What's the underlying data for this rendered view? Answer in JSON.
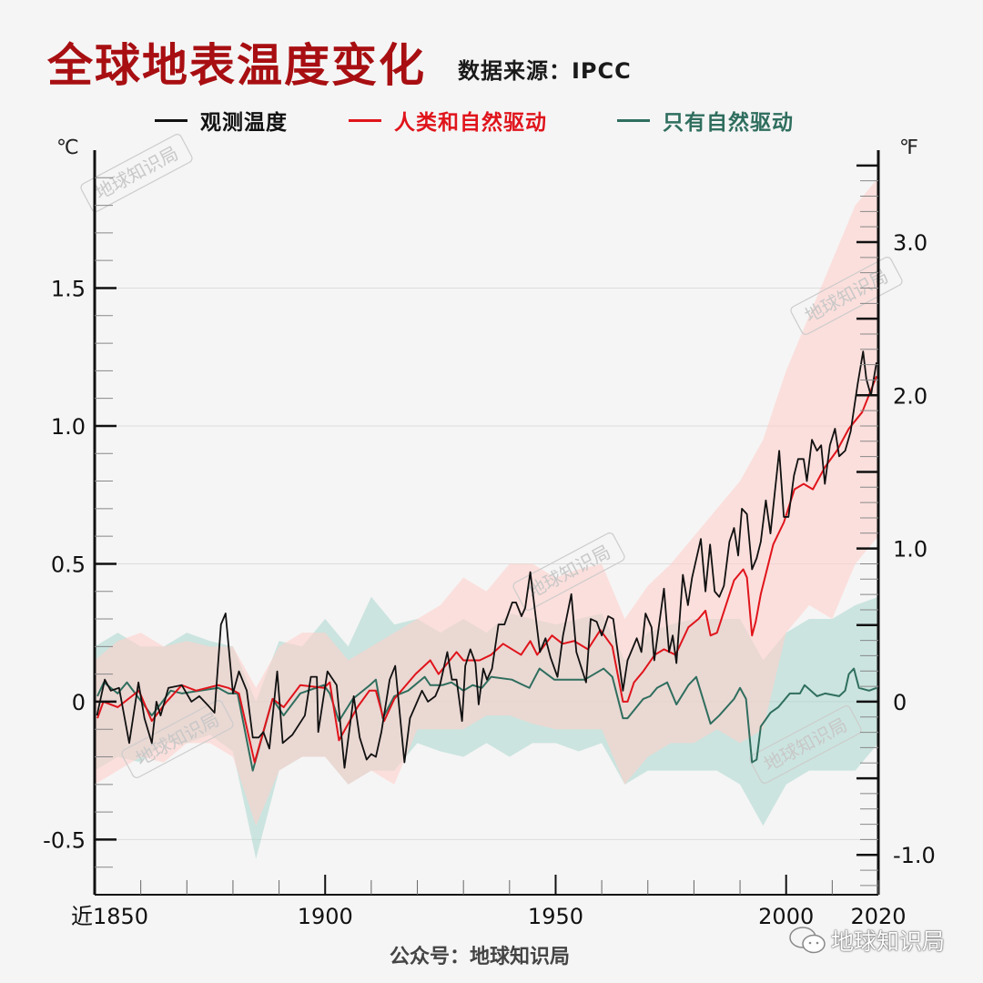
{
  "title": "全球地表温度变化",
  "source": "数据来源：IPCC",
  "footer": "公众号：地球知识局",
  "wechat_label": "地球知识局",
  "watermark": "地球知识局",
  "colors": {
    "observed": "#111111",
    "human_natural": "#e0141b",
    "natural_only": "#2f6e5e",
    "human_natural_band": "#ffd0cc",
    "natural_only_band": "#a8d5cc",
    "title": "#a80f12"
  },
  "chart_data": {
    "type": "line",
    "title": "全球地表温度变化",
    "ylabel_left": "℃",
    "ylabel_right": "℉",
    "xlim": [
      1850,
      2020
    ],
    "ylim": [
      -0.7,
      2.0
    ],
    "x_ticks": [
      {
        "v": 1850,
        "label": "近1850"
      },
      {
        "v": 1900,
        "label": "1900"
      },
      {
        "v": 1950,
        "label": "1950"
      },
      {
        "v": 2000,
        "label": "2000"
      },
      {
        "v": 2020,
        "label": "2020"
      }
    ],
    "y_ticks_left": [
      {
        "v": -0.5,
        "label": "-0.5"
      },
      {
        "v": 0,
        "label": "0"
      },
      {
        "v": 0.5,
        "label": "0.5"
      },
      {
        "v": 1.0,
        "label": "1.0"
      },
      {
        "v": 1.5,
        "label": "1.5"
      }
    ],
    "y_ticks_right": [
      {
        "v": -1.0,
        "label": "-1.0"
      },
      {
        "v": 0,
        "label": "0"
      },
      {
        "v": 1.0,
        "label": "1.0"
      },
      {
        "v": 2.0,
        "label": "2.0"
      },
      {
        "v": 3.0,
        "label": "3.0"
      }
    ],
    "grid": true,
    "legend_position": "top",
    "series": [
      {
        "name": "观测温度",
        "color": "#111111",
        "x": [
          1850.5,
          1852.2,
          1853.5,
          1855.3,
          1857.5,
          1859.5,
          1860.8,
          1862.4,
          1863.4,
          1864.3,
          1866,
          1868.9,
          1871,
          1872.7,
          1874.4,
          1876,
          1877.4,
          1878.4,
          1880,
          1881.3,
          1883,
          1884.3,
          1885.6,
          1886.6,
          1887.9,
          1889.6,
          1890.8,
          1892.9,
          1895.6,
          1896.9,
          1898.2,
          1898.5,
          1900.5,
          1902.5,
          1904.2,
          1906.2,
          1907.5,
          1909,
          1910,
          1911,
          1912.2,
          1914,
          1915.2,
          1917.2,
          1918.4,
          1919.7,
          1921,
          1922.3,
          1923.9,
          1924.9,
          1926.5,
          1927.5,
          1928.5,
          1929.7,
          1930.4,
          1931.5,
          1932.6,
          1933.3,
          1934.3,
          1935.1,
          1936.2,
          1937.6,
          1938.9,
          1940.6,
          1941.4,
          1942.6,
          1943.4,
          1944.5,
          1946.6,
          1947.8,
          1948.9,
          1950.4,
          1951.6,
          1953.4,
          1954.5,
          1956.6,
          1957.6,
          1958.9,
          1960,
          1961.4,
          1962.5,
          1964.6,
          1965.6,
          1967.6,
          1968.6,
          1969.5,
          1970.8,
          1971.4,
          1973.5,
          1974.6,
          1975.4,
          1976.2,
          1977.6,
          1978.7,
          1979.6,
          1981.5,
          1982.5,
          1983.5,
          1984.5,
          1985.5,
          1986.5,
          1987.7,
          1988.7,
          1989.6,
          1990.4,
          1991.5,
          1992.6,
          1993.6,
          1994.5,
          1995.6,
          1996.6,
          1998.5,
          1999.5,
          2000.5,
          2001.7,
          2002.6,
          2003.8,
          2004.5,
          2005.6,
          2006.7,
          2007.6,
          2008.4,
          2009.5,
          2010.6,
          2011.5,
          2012.8,
          2014,
          2015.5,
          2016.7,
          2017.4,
          2018.4,
          2019.6
        ],
        "y": [
          -0.05,
          0.08,
          0.04,
          0.05,
          -0.15,
          0.07,
          -0.06,
          -0.15,
          0.0,
          -0.05,
          0.05,
          0.06,
          0.0,
          0.02,
          -0.01,
          -0.04,
          0.28,
          0.32,
          0.03,
          0.11,
          0.04,
          -0.13,
          -0.13,
          -0.11,
          -0.17,
          0.11,
          -0.15,
          -0.12,
          -0.05,
          0.09,
          0.09,
          -0.11,
          0.11,
          0.06,
          -0.24,
          0.02,
          -0.13,
          -0.21,
          -0.19,
          -0.2,
          -0.11,
          0.08,
          0.13,
          -0.22,
          -0.06,
          -0.01,
          0.04,
          0.0,
          0.02,
          0.06,
          0.18,
          0.08,
          0.08,
          -0.07,
          0.13,
          0.19,
          0.14,
          -0.01,
          0.12,
          0.08,
          0.12,
          0.28,
          0.28,
          0.36,
          0.36,
          0.31,
          0.34,
          0.47,
          0.18,
          0.23,
          0.16,
          0.09,
          0.24,
          0.39,
          0.18,
          0.07,
          0.3,
          0.29,
          0.24,
          0.31,
          0.3,
          0.04,
          0.15,
          0.23,
          0.18,
          0.32,
          0.27,
          0.15,
          0.41,
          0.18,
          0.24,
          0.14,
          0.46,
          0.35,
          0.45,
          0.59,
          0.4,
          0.57,
          0.4,
          0.38,
          0.42,
          0.58,
          0.63,
          0.53,
          0.7,
          0.68,
          0.48,
          0.52,
          0.58,
          0.73,
          0.61,
          0.91,
          0.67,
          0.67,
          0.82,
          0.88,
          0.88,
          0.8,
          0.95,
          0.91,
          0.93,
          0.79,
          0.93,
          0.99,
          0.89,
          0.91,
          0.98,
          1.15,
          1.27,
          1.17,
          1.11,
          1.23
        ]
      },
      {
        "name": "人类和自然驱动",
        "color": "#e0141b",
        "x": [
          1850.6,
          1851.9,
          1855,
          1859.6,
          1862.4,
          1865.6,
          1868.9,
          1872,
          1876.8,
          1879,
          1881.3,
          1884.7,
          1888.6,
          1891,
          1894.6,
          1899.7,
          1901,
          1903,
          1907,
          1909.6,
          1911,
          1912.8,
          1915,
          1919.6,
          1922.8,
          1924.6,
          1928.5,
          1930,
          1933.5,
          1936,
          1938.6,
          1942.5,
          1944.5,
          1946,
          1949.2,
          1951.5,
          1954,
          1957,
          1959.7,
          1962.3,
          1964.6,
          1965.6,
          1967,
          1969,
          1971.5,
          1973.5,
          1976,
          1978.8,
          1981,
          1982.5,
          1983.6,
          1985,
          1988.7,
          1990.7,
          1991.5,
          1992.6,
          1993.4,
          1994.5,
          1997.2,
          1999.5,
          2001.8,
          2003.8,
          2005.8,
          2008.4,
          2011,
          2013.6,
          2016.5,
          2019.6
        ],
        "y": [
          -0.06,
          0.0,
          -0.02,
          0.04,
          -0.07,
          0.0,
          0.06,
          0.04,
          0.06,
          0.05,
          0.03,
          -0.22,
          0.01,
          -0.02,
          0.06,
          0.05,
          0.07,
          -0.14,
          -0.02,
          0.04,
          0.04,
          -0.07,
          0.01,
          0.1,
          0.15,
          0.1,
          0.18,
          0.15,
          0.15,
          0.17,
          0.21,
          0.17,
          0.22,
          0.17,
          0.24,
          0.21,
          0.22,
          0.19,
          0.26,
          0.2,
          0.0,
          0.0,
          0.07,
          0.11,
          0.17,
          0.19,
          0.17,
          0.27,
          0.3,
          0.33,
          0.24,
          0.25,
          0.44,
          0.48,
          0.45,
          0.24,
          0.29,
          0.39,
          0.57,
          0.65,
          0.77,
          0.79,
          0.77,
          0.85,
          0.91,
          0.99,
          1.05,
          1.18
        ],
        "band_x": [
          1850,
          1855,
          1860,
          1865,
          1870,
          1875,
          1880,
          1885,
          1890,
          1895,
          1900,
          1905,
          1910,
          1915,
          1920,
          1925,
          1930,
          1935,
          1940,
          1945,
          1950,
          1955,
          1960,
          1965,
          1970,
          1975,
          1980,
          1985,
          1990,
          1995,
          2000,
          2005,
          2010,
          2015,
          2020
        ],
        "band_upper": [
          0.15,
          0.22,
          0.25,
          0.2,
          0.22,
          0.2,
          0.2,
          0.05,
          0.2,
          0.25,
          0.25,
          0.15,
          0.2,
          0.25,
          0.3,
          0.35,
          0.45,
          0.4,
          0.5,
          0.5,
          0.45,
          0.48,
          0.5,
          0.3,
          0.42,
          0.5,
          0.6,
          0.7,
          0.8,
          0.95,
          1.2,
          1.4,
          1.6,
          1.8,
          1.9
        ],
        "band_lower": [
          -0.3,
          -0.25,
          -0.2,
          -0.22,
          -0.15,
          -0.15,
          -0.2,
          -0.45,
          -0.25,
          -0.2,
          -0.2,
          -0.3,
          -0.25,
          -0.3,
          -0.1,
          -0.1,
          -0.1,
          -0.05,
          -0.05,
          -0.08,
          -0.1,
          -0.1,
          -0.1,
          -0.3,
          -0.2,
          -0.15,
          -0.15,
          -0.1,
          -0.15,
          -0.1,
          0.25,
          0.35,
          0.3,
          0.5,
          0.6
        ]
      },
      {
        "name": "只有自然驱动",
        "color": "#2f6e5e",
        "x": [
          1850.6,
          1852,
          1855,
          1857,
          1862.4,
          1866.5,
          1868.9,
          1876.8,
          1879,
          1881,
          1884.3,
          1888.6,
          1891,
          1894.6,
          1899.7,
          1901,
          1903,
          1906,
          1909.7,
          1911,
          1912.5,
          1915,
          1918,
          1921.6,
          1922.8,
          1925.4,
          1927.4,
          1930,
          1932,
          1934,
          1936,
          1940.5,
          1943,
          1944.3,
          1946.5,
          1949.7,
          1953.7,
          1956.3,
          1960.4,
          1962.3,
          1964.6,
          1965.6,
          1969,
          1970.5,
          1972,
          1974.2,
          1976.2,
          1978.8,
          1980.5,
          1983.6,
          1985.5,
          1988.7,
          1990,
          1991.3,
          1992.6,
          1993.6,
          1994.5,
          1996.6,
          1998.3,
          2000.8,
          2003,
          2004,
          2006.7,
          2008.5,
          2011.5,
          2012.8,
          2013.6,
          2014.7,
          2015.8,
          2018,
          2019.6
        ],
        "y": [
          0.02,
          0.07,
          0.03,
          0.07,
          -0.05,
          0.04,
          0.03,
          0.05,
          0.03,
          0.03,
          -0.25,
          0.01,
          -0.05,
          0.03,
          0.06,
          0.03,
          -0.07,
          0.01,
          0.06,
          0.08,
          -0.06,
          0.02,
          0.04,
          0.09,
          0.06,
          0.06,
          0.07,
          0.04,
          0.06,
          0.05,
          0.09,
          0.08,
          0.06,
          0.05,
          0.12,
          0.08,
          0.08,
          0.08,
          0.12,
          0.09,
          -0.06,
          -0.06,
          0.01,
          0.02,
          0.05,
          0.07,
          -0.01,
          0.06,
          0.09,
          -0.08,
          -0.05,
          0.01,
          0.05,
          0.01,
          -0.22,
          -0.21,
          -0.09,
          -0.04,
          -0.02,
          0.03,
          0.03,
          0.06,
          0.02,
          0.03,
          0.02,
          0.04,
          0.1,
          0.12,
          0.05,
          0.04,
          0.05
        ],
        "band_x": [
          1850,
          1855,
          1860,
          1865,
          1870,
          1875,
          1880,
          1885,
          1890,
          1895,
          1900,
          1905,
          1910,
          1915,
          1920,
          1925,
          1930,
          1935,
          1940,
          1945,
          1950,
          1955,
          1960,
          1965,
          1970,
          1975,
          1980,
          1985,
          1990,
          1995,
          2000,
          2005,
          2010,
          2015,
          2020
        ],
        "band_upper": [
          0.2,
          0.25,
          0.2,
          0.2,
          0.25,
          0.22,
          0.2,
          0.0,
          0.22,
          0.2,
          0.3,
          0.2,
          0.38,
          0.28,
          0.3,
          0.25,
          0.3,
          0.25,
          0.32,
          0.3,
          0.28,
          0.3,
          0.32,
          0.15,
          0.25,
          0.28,
          0.3,
          0.3,
          0.3,
          0.15,
          0.25,
          0.3,
          0.3,
          0.35,
          0.38
        ],
        "band_lower": [
          -0.25,
          -0.2,
          -0.22,
          -0.15,
          -0.15,
          -0.12,
          -0.18,
          -0.57,
          -0.25,
          -0.2,
          -0.2,
          -0.3,
          -0.25,
          -0.25,
          -0.15,
          -0.18,
          -0.2,
          -0.15,
          -0.2,
          -0.15,
          -0.15,
          -0.18,
          -0.15,
          -0.3,
          -0.25,
          -0.25,
          -0.25,
          -0.25,
          -0.3,
          -0.45,
          -0.3,
          -0.25,
          -0.25,
          -0.25,
          -0.15
        ]
      }
    ]
  }
}
